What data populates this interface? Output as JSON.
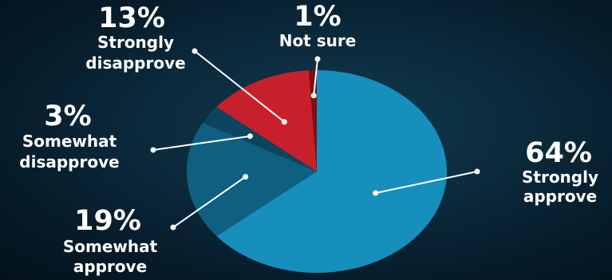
{
  "chart_data": {
    "type": "pie",
    "title": "",
    "slices": [
      {
        "name": "Strongly approve",
        "line1": "Strongly",
        "line2": "approve",
        "value": 64,
        "label": "64%",
        "color": "#168fbd"
      },
      {
        "name": "Somewhat approve",
        "line1": "Somewhat",
        "line2": "approve",
        "value": 19,
        "label": "19%",
        "color": "#0f5f80"
      },
      {
        "name": "Somewhat disapprove",
        "line1": "Somewhat",
        "line2": "disapprove",
        "value": 3,
        "label": "3%",
        "color": "#0b4560"
      },
      {
        "name": "Strongly disapprove",
        "line1": "Strongly",
        "line2": "disapprove",
        "value": 13,
        "label": "13%",
        "color": "#c8202b"
      },
      {
        "name": "Not sure",
        "line1": "Not sure",
        "line2": "",
        "value": 1,
        "label": "1%",
        "color": "#7e0f16"
      }
    ],
    "legend": "none",
    "data_labels": "outside-with-leaders"
  }
}
